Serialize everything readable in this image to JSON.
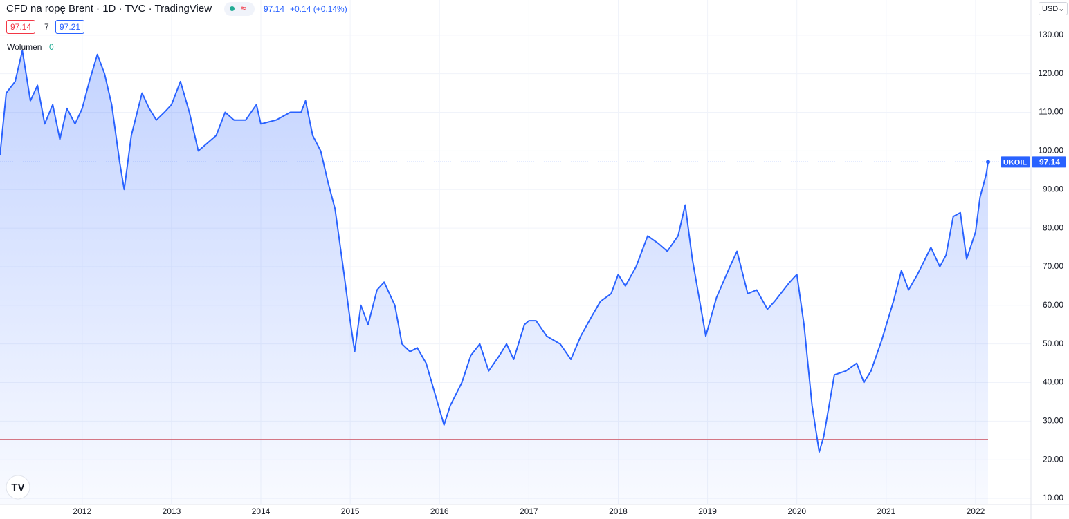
{
  "header": {
    "title": "CFD na ropę Brent · 1D · TVC · TradingView",
    "price": "97.14",
    "change": "+0.14 (+0.14%)",
    "bid": "97.14",
    "spread": "7",
    "ask": "97.21",
    "volume_label": "Wolumen",
    "volume_value": "0",
    "currency": "USD"
  },
  "chart_data": {
    "type": "line",
    "grid": true,
    "area": true,
    "x": [
      2011.08,
      2011.15,
      2011.25,
      2011.33,
      2011.42,
      2011.5,
      2011.58,
      2011.67,
      2011.75,
      2011.83,
      2011.92,
      2012.0,
      2012.08,
      2012.17,
      2012.25,
      2012.33,
      2012.42,
      2012.47,
      2012.55,
      2012.67,
      2012.75,
      2012.83,
      2012.92,
      2013.0,
      2013.1,
      2013.2,
      2013.3,
      2013.4,
      2013.5,
      2013.6,
      2013.7,
      2013.83,
      2013.95,
      2014.0,
      2014.17,
      2014.33,
      2014.45,
      2014.5,
      2014.58,
      2014.67,
      2014.75,
      2014.83,
      2014.92,
      2015.0,
      2015.05,
      2015.12,
      2015.2,
      2015.3,
      2015.38,
      2015.5,
      2015.58,
      2015.67,
      2015.75,
      2015.85,
      2015.95,
      2016.05,
      2016.12,
      2016.25,
      2016.35,
      2016.45,
      2016.55,
      2016.67,
      2016.75,
      2016.83,
      2016.95,
      2017.0,
      2017.08,
      2017.2,
      2017.35,
      2017.47,
      2017.58,
      2017.7,
      2017.8,
      2017.92,
      2018.0,
      2018.08,
      2018.2,
      2018.33,
      2018.45,
      2018.55,
      2018.67,
      2018.75,
      2018.83,
      2018.92,
      2018.98,
      2019.1,
      2019.25,
      2019.33,
      2019.45,
      2019.55,
      2019.67,
      2019.75,
      2019.92,
      2020.0,
      2020.08,
      2020.17,
      2020.25,
      2020.3,
      2020.42,
      2020.55,
      2020.67,
      2020.75,
      2020.83,
      2020.95,
      2021.08,
      2021.17,
      2021.25,
      2021.35,
      2021.5,
      2021.6,
      2021.67,
      2021.75,
      2021.83,
      2021.9,
      2022.0,
      2022.05,
      2022.12,
      2022.14
    ],
    "series": [
      {
        "name": "UKOIL",
        "color": "#2962ff",
        "values": [
          99,
          115,
          118,
          126,
          113,
          117,
          107,
          112,
          103,
          111,
          107,
          111,
          118,
          125,
          120,
          112,
          97,
          90,
          104,
          115,
          111,
          108,
          110,
          112,
          118,
          110,
          100,
          102,
          104,
          110,
          108,
          108,
          112,
          107,
          108,
          110,
          110,
          113,
          104,
          100,
          92,
          85,
          70,
          56,
          48,
          60,
          55,
          64,
          66,
          60,
          50,
          48,
          49,
          45,
          37,
          29,
          34,
          40,
          47,
          50,
          43,
          47,
          50,
          46,
          55,
          56,
          56,
          52,
          50,
          46,
          52,
          57,
          61,
          63,
          68,
          65,
          70,
          78,
          76,
          74,
          78,
          86,
          72,
          60,
          52,
          62,
          70,
          74,
          63,
          64,
          59,
          61,
          66,
          68,
          55,
          34,
          22,
          26,
          42,
          43,
          45,
          40,
          43,
          51,
          61,
          69,
          64,
          68,
          75,
          70,
          73,
          83,
          84,
          72,
          79,
          88,
          94,
          97.14
        ]
      }
    ],
    "xlim": [
      2011.08,
      2022.62
    ],
    "ylim": [
      8.4,
      139.1
    ],
    "xticks": [
      2012,
      2013,
      2014,
      2015,
      2016,
      2017,
      2018,
      2019,
      2020,
      2021,
      2022
    ],
    "yticks": [
      {
        "value": 10,
        "label": "10.00"
      },
      {
        "value": 20,
        "label": "20.00"
      },
      {
        "value": 30,
        "label": "30.00"
      },
      {
        "value": 40,
        "label": "40.00"
      },
      {
        "value": 50,
        "label": "50.00"
      },
      {
        "value": 60,
        "label": "60.00"
      },
      {
        "value": 70,
        "label": "70.00"
      },
      {
        "value": 80,
        "label": "80.00"
      },
      {
        "value": 90,
        "label": "90.00"
      },
      {
        "value": 100,
        "label": "100.00"
      },
      {
        "value": 110,
        "label": "110.00"
      },
      {
        "value": 120,
        "label": "120.00"
      },
      {
        "value": 130,
        "label": "130.00"
      }
    ]
  }
}
